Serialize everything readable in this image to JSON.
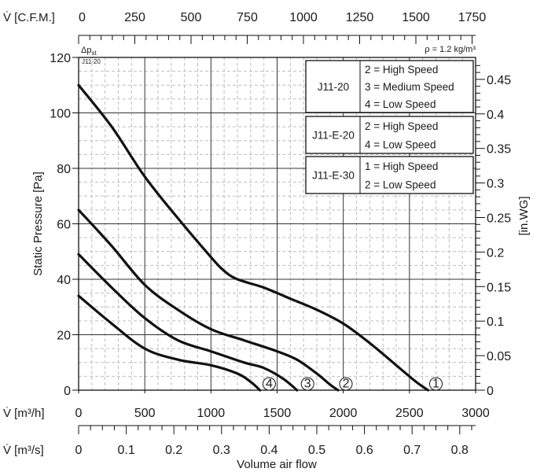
{
  "chart_data": {
    "type": "line",
    "xlabel": "Volume air flow",
    "ylabel": "Static Pressure [Pa]",
    "y2label": "[in.WG]",
    "top_axis_label": "V̇ [C.F.M.]",
    "bottom_axis_label": "V̇ [m³/h]",
    "bottom2_axis_label": "V̇ [m³/s]",
    "delta_p_label": "Δp",
    "delta_p_sub": "st",
    "density_label": "ρ = 1.2 kg/m³",
    "corner_label": "J11-20",
    "x_range": [
      0,
      3000
    ],
    "ylim": [
      0,
      120
    ],
    "grid": true,
    "x_ticks": [
      "0",
      "500",
      "1000",
      "1500",
      "2000",
      "2500",
      "3000"
    ],
    "x_tick_values": [
      0,
      500,
      1000,
      1500,
      2000,
      2500,
      3000
    ],
    "y_ticks": [
      "0",
      "20",
      "40",
      "60",
      "80",
      "100",
      "120"
    ],
    "y_tick_values": [
      0,
      20,
      40,
      60,
      80,
      100,
      120
    ],
    "cfm_ticks": [
      "0",
      "250",
      "500",
      "750",
      "1000",
      "1250",
      "1500",
      "1750"
    ],
    "cfm_tick_values": [
      0,
      250,
      500,
      750,
      1000,
      1250,
      1500,
      1750
    ],
    "m3s_ticks": [
      "0",
      "0.1",
      "0.2",
      "0.3",
      "0.4",
      "0.5",
      "0.6",
      "0.7",
      "0.8"
    ],
    "m3s_tick_values": [
      0,
      0.1,
      0.2,
      0.3,
      0.4,
      0.5,
      0.6,
      0.7,
      0.8
    ],
    "inwg_ticks": [
      "0",
      "0.05",
      "0.1",
      "0.15",
      "0.2",
      "0.25",
      "0.3",
      "0.35",
      "0.4",
      "0.45"
    ],
    "inwg_tick_values": [
      0,
      0.05,
      0.1,
      0.15,
      0.2,
      0.25,
      0.3,
      0.35,
      0.4,
      0.45
    ],
    "series": [
      {
        "name": "1",
        "points": [
          [
            0,
            110
          ],
          [
            250,
            95
          ],
          [
            500,
            77
          ],
          [
            750,
            62
          ],
          [
            1000,
            48
          ],
          [
            1100,
            43
          ],
          [
            1200,
            40
          ],
          [
            1400,
            37
          ],
          [
            1600,
            33
          ],
          [
            1800,
            29
          ],
          [
            2000,
            24
          ],
          [
            2200,
            17
          ],
          [
            2400,
            9
          ],
          [
            2550,
            3
          ],
          [
            2640,
            0
          ]
        ]
      },
      {
        "name": "2",
        "points": [
          [
            0,
            65
          ],
          [
            250,
            52
          ],
          [
            500,
            38
          ],
          [
            750,
            29
          ],
          [
            1000,
            22
          ],
          [
            1250,
            18
          ],
          [
            1500,
            14
          ],
          [
            1650,
            11
          ],
          [
            1800,
            6
          ],
          [
            1900,
            2
          ],
          [
            1960,
            0
          ]
        ]
      },
      {
        "name": "3",
        "points": [
          [
            0,
            49
          ],
          [
            250,
            37
          ],
          [
            500,
            26
          ],
          [
            750,
            18
          ],
          [
            1000,
            14
          ],
          [
            1250,
            10
          ],
          [
            1400,
            8
          ],
          [
            1550,
            4
          ],
          [
            1650,
            0
          ]
        ]
      },
      {
        "name": "4",
        "points": [
          [
            0,
            34
          ],
          [
            250,
            24
          ],
          [
            500,
            15
          ],
          [
            750,
            11
          ],
          [
            1000,
            9
          ],
          [
            1200,
            6
          ],
          [
            1300,
            3
          ],
          [
            1370,
            0
          ]
        ]
      }
    ],
    "end_markers": [
      {
        "label": "①",
        "x": 2700,
        "y": 0
      },
      {
        "label": "②",
        "x": 2020,
        "y": 0
      },
      {
        "label": "③",
        "x": 1730,
        "y": 0
      },
      {
        "label": "④",
        "x": 1440,
        "y": 0
      }
    ],
    "legend": [
      {
        "model": "J11-20",
        "lines": [
          "2 = High Speed",
          "3 = Medium Speed",
          "4 = Low Speed"
        ]
      },
      {
        "model": "J11-E-20",
        "lines": [
          "2 = High Speed",
          "4 = Low Speed"
        ]
      },
      {
        "model": "J11-E-30",
        "lines": [
          "1 = High Speed",
          "2 = Low Speed"
        ]
      }
    ],
    "legend_placement": "top-right"
  }
}
